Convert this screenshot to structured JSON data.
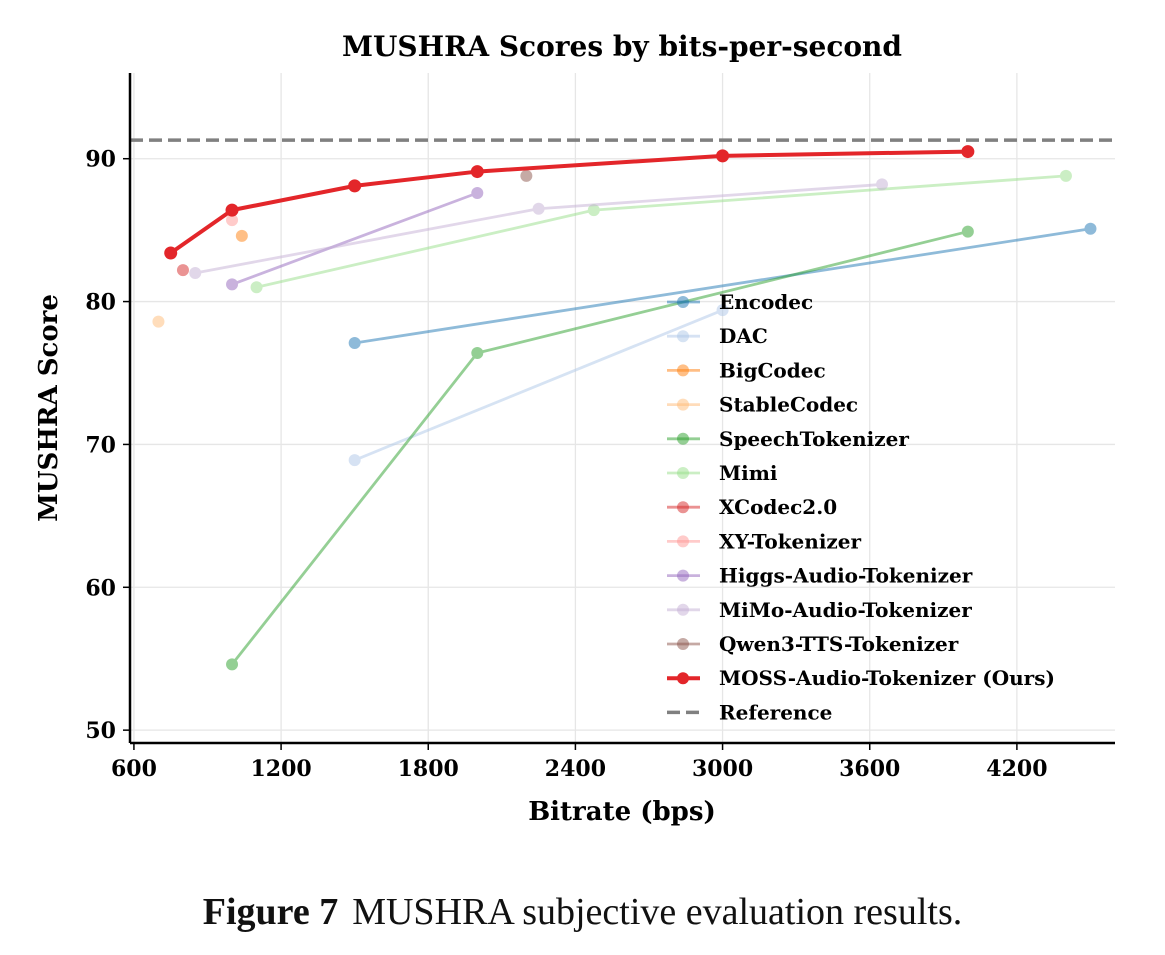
{
  "chart_data": {
    "type": "line",
    "title": "MUSHRA Scores by bits-per-second",
    "xlabel": "Bitrate (bps)",
    "ylabel": "MUSHRA Score",
    "xlim": [
      584,
      4600
    ],
    "ylim": [
      49.1,
      96.0
    ],
    "xticks": [
      600,
      1200,
      1800,
      2400,
      3000,
      3600,
      4200
    ],
    "yticks": [
      50,
      60,
      70,
      80,
      90
    ],
    "grid": true,
    "legend_position": "lower-right",
    "series": [
      {
        "name": "Encodec",
        "color": "#1f77b4",
        "x": [
          1500,
          4500
        ],
        "y": [
          77.1,
          85.1
        ]
      },
      {
        "name": "DAC",
        "color": "#aec7e8",
        "x": [
          1500,
          3000
        ],
        "y": [
          68.9,
          79.4
        ]
      },
      {
        "name": "BigCodec",
        "color": "#ff7f0e",
        "x": [
          1040
        ],
        "y": [
          84.6
        ]
      },
      {
        "name": "StableCodec",
        "color": "#ffbb78",
        "x": [
          700
        ],
        "y": [
          78.6
        ]
      },
      {
        "name": "SpeechTokenizer",
        "color": "#2ca02c",
        "x": [
          1000,
          2000,
          4000
        ],
        "y": [
          54.6,
          76.4,
          84.9
        ]
      },
      {
        "name": "Mimi",
        "color": "#98df8a",
        "x": [
          1100,
          2475,
          4400
        ],
        "y": [
          81.0,
          86.4,
          88.8
        ]
      },
      {
        "name": "XCodec2.0",
        "color": "#d62728",
        "x": [
          800
        ],
        "y": [
          82.2
        ]
      },
      {
        "name": "XY-Tokenizer",
        "color": "#ff9896",
        "x": [
          1000
        ],
        "y": [
          85.7
        ]
      },
      {
        "name": "Higgs-Audio-Tokenizer",
        "color": "#9467bd",
        "x": [
          1000,
          2000
        ],
        "y": [
          81.2,
          87.6
        ]
      },
      {
        "name": "MiMo-Audio-Tokenizer",
        "color": "#c5b0d5",
        "x": [
          850,
          2250,
          3650
        ],
        "y": [
          82.0,
          86.5,
          88.2
        ]
      },
      {
        "name": "Qwen3-TTS-Tokenizer",
        "color": "#8c564b",
        "x": [
          2200
        ],
        "y": [
          88.8
        ]
      },
      {
        "name": "MOSS-Audio-Tokenizer (Ours)",
        "color": "#e3262a",
        "highlight": true,
        "x": [
          750,
          1000,
          1500,
          2000,
          3000,
          4000
        ],
        "y": [
          83.4,
          86.4,
          88.1,
          89.1,
          90.2,
          90.5
        ]
      }
    ],
    "reference": {
      "name": "Reference",
      "color": "#808080",
      "y": 91.3
    }
  },
  "caption": {
    "label": "Figure 7",
    "text": "MUSHRA subjective evaluation results."
  }
}
